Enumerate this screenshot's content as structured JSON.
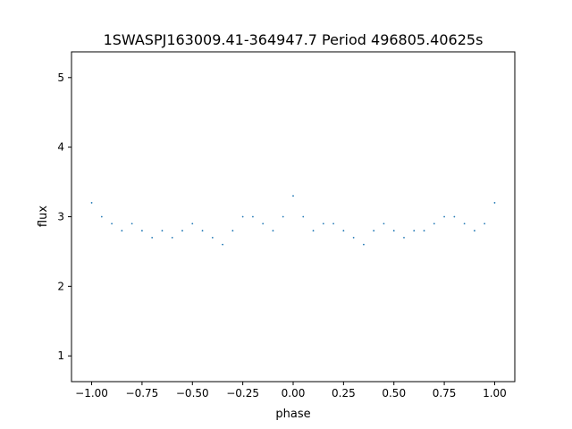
{
  "chart_data": {
    "type": "scatter",
    "title": "1SWASPJ163009.41-364947.7 Period 496805.40625s",
    "xlabel": "phase",
    "ylabel": "flux",
    "xlim": [
      -1.1,
      1.1
    ],
    "ylim": [
      0.63,
      5.37
    ],
    "xticks": [
      -1.0,
      -0.75,
      -0.5,
      -0.25,
      0.0,
      0.25,
      0.5,
      0.75,
      1.0
    ],
    "xtick_labels": [
      "−1.00",
      "−0.75",
      "−0.50",
      "−0.25",
      "0.00",
      "0.25",
      "0.50",
      "0.75",
      "1.00"
    ],
    "yticks": [
      1,
      2,
      3,
      4,
      5
    ],
    "ytick_labels": [
      "1",
      "2",
      "3",
      "4",
      "5"
    ],
    "grid": false,
    "legend": "none",
    "marker_color": "#1f77b4",
    "series": [
      {
        "x": [
          -1.0,
          -0.95,
          -0.9,
          -0.85,
          -0.8,
          -0.75,
          -0.7,
          -0.65,
          -0.6,
          -0.55,
          -0.5,
          -0.45,
          -0.4,
          -0.35,
          -0.3,
          -0.25,
          -0.2,
          -0.15,
          -0.1,
          -0.05,
          0.0,
          0.05,
          0.1,
          0.15,
          0.2,
          0.25,
          0.3,
          0.35,
          0.4,
          0.45,
          0.5,
          0.55,
          0.6,
          0.65,
          0.7,
          0.75,
          0.8,
          0.85,
          0.9,
          0.95,
          1.0
        ],
        "y": [
          3.2,
          3.0,
          2.9,
          2.8,
          2.9,
          2.8,
          2.7,
          2.8,
          2.7,
          2.8,
          2.9,
          2.8,
          2.7,
          2.6,
          2.8,
          3.0,
          3.0,
          2.9,
          2.8,
          3.0,
          3.3,
          3.0,
          2.8,
          2.9,
          2.9,
          2.8,
          2.7,
          2.6,
          2.8,
          2.9,
          2.8,
          2.7,
          2.8,
          2.8,
          2.9,
          3.0,
          3.0,
          2.9,
          2.8,
          2.9,
          3.2
        ]
      }
    ]
  }
}
